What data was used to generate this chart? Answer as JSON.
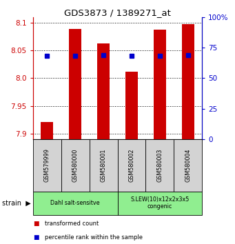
{
  "title": "GDS3873 / 1389271_at",
  "samples": [
    "GSM579999",
    "GSM580000",
    "GSM580001",
    "GSM580002",
    "GSM580003",
    "GSM580004"
  ],
  "transformed_counts": [
    7.921,
    8.088,
    8.063,
    8.012,
    8.087,
    8.097
  ],
  "percentile_ranks": [
    68,
    68,
    69,
    68,
    68,
    69
  ],
  "ylim_left": [
    7.89,
    8.11
  ],
  "ylim_right": [
    0,
    100
  ],
  "yticks_left": [
    7.9,
    7.95,
    8.0,
    8.05,
    8.1
  ],
  "yticks_right": [
    0,
    25,
    50,
    75,
    100
  ],
  "bar_color": "#cc0000",
  "dot_color": "#0000cc",
  "strain_groups": [
    {
      "label": "Dahl salt-sensitve",
      "span": [
        0,
        3
      ],
      "color": "#90ee90"
    },
    {
      "label": "S.LEW(10)x12x2x3x5\ncongenic",
      "span": [
        3,
        6
      ],
      "color": "#90ee90"
    }
  ],
  "legend_items": [
    {
      "color": "#cc0000",
      "label": "transformed count"
    },
    {
      "color": "#0000cc",
      "label": "percentile rank within the sample"
    }
  ],
  "left_axis_color": "#cc0000",
  "right_axis_color": "#0000cc",
  "base_value": 7.89,
  "bar_width": 0.45
}
